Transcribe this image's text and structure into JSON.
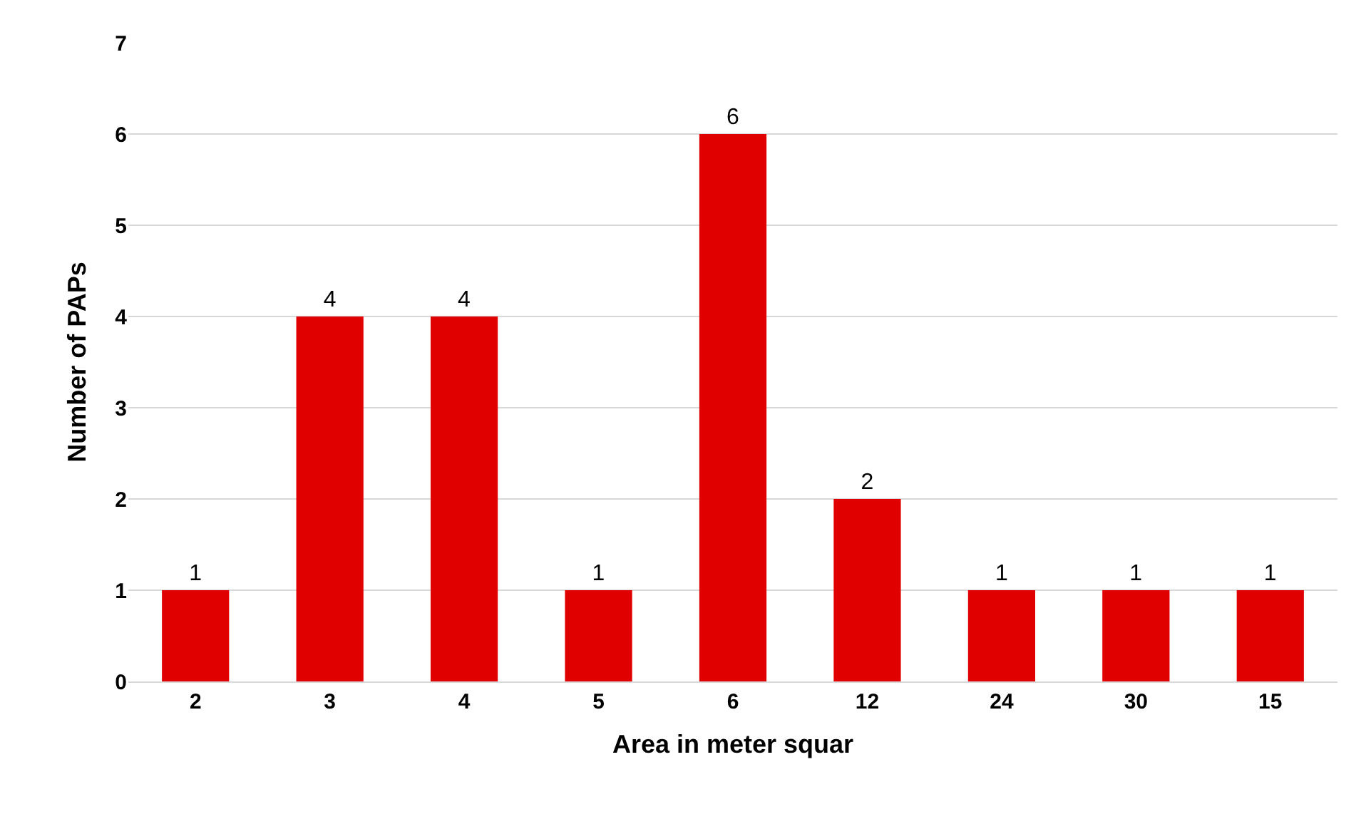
{
  "chart_data": {
    "type": "bar",
    "xlabel": "Area in meter squar",
    "ylabel": "Number of PAPs",
    "categories": [
      "2",
      "3",
      "4",
      "5",
      "6",
      "12",
      "24",
      "30",
      "15"
    ],
    "values": [
      1,
      4,
      4,
      1,
      6,
      2,
      1,
      1,
      1
    ],
    "color": "#e00000",
    "ylim": [
      0,
      7
    ],
    "yticks": [
      0,
      1,
      2,
      3,
      4,
      5,
      6,
      7
    ],
    "grid": "y",
    "data_labels": true
  }
}
